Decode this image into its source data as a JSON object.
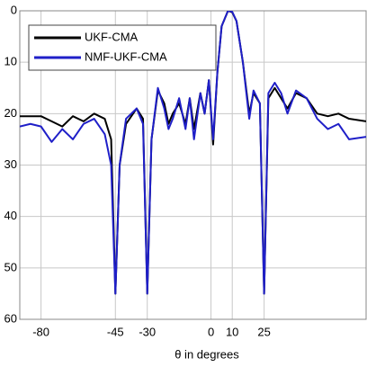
{
  "chart_data": {
    "type": "line",
    "xlabel": "θ in degrees",
    "x": [
      -90,
      -85,
      -80,
      -75,
      -70,
      -65,
      -60,
      -55,
      -50,
      -47,
      -45,
      -43,
      -40,
      -35,
      -32,
      -30,
      -28,
      -25,
      -22,
      -20,
      -18,
      -15,
      -12,
      -10,
      -8,
      -5,
      -3,
      -1,
      1,
      3,
      5,
      8,
      10,
      12,
      15,
      18,
      20,
      23,
      25,
      27,
      30,
      33,
      36,
      40,
      45,
      50,
      55,
      60,
      65,
      73
    ],
    "series": [
      {
        "name": "UKF-CMA",
        "color": "#000000",
        "values": [
          20.5,
          20.5,
          20.5,
          21.5,
          22.5,
          20.5,
          21.5,
          20,
          21,
          25,
          55,
          30,
          22,
          19,
          21,
          55,
          25,
          15.5,
          18,
          22,
          20,
          18,
          22,
          17,
          23,
          16,
          20,
          13.5,
          26,
          12,
          3,
          0,
          0.3,
          2,
          10,
          20,
          16,
          18,
          55,
          17,
          15,
          17,
          19,
          16,
          17,
          20,
          20.5,
          20,
          21,
          21.5
        ]
      },
      {
        "name": "NMF-UKF-CMA",
        "color": "#1f1fc8",
        "values": [
          22.5,
          22,
          22.5,
          25.5,
          23,
          25,
          22,
          21,
          24,
          30,
          55,
          30,
          21,
          19,
          22,
          55,
          25,
          15,
          19,
          23,
          21,
          17,
          23,
          17,
          25,
          16,
          20,
          13.5,
          25,
          12,
          3,
          0,
          0.2,
          2,
          10,
          21,
          15.5,
          18,
          55,
          16,
          14,
          16,
          20,
          15.5,
          17,
          21,
          23,
          22,
          25,
          24.5
        ]
      }
    ],
    "xlim": [
      -90,
      73
    ],
    "ylim": [
      60,
      0
    ],
    "xticks": [
      -80,
      -45,
      -30,
      0,
      10,
      25
    ],
    "yticks": [
      0,
      10,
      20,
      30,
      40,
      50,
      60
    ],
    "grid": true,
    "legend": "upper left"
  }
}
